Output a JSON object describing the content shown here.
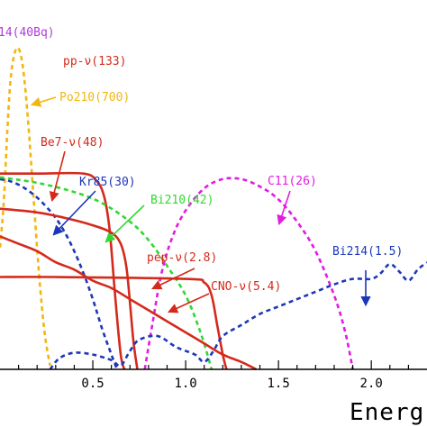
{
  "chart_data": {
    "type": "line",
    "xlabel": "Energ",
    "xlim": [
      0.0,
      2.3
    ],
    "ylim": [
      0,
      1
    ],
    "x_ticks": [
      0.5,
      1.0,
      1.5,
      2.0
    ],
    "x_tick_labels": [
      "0.5",
      "1.0",
      "1.5",
      "2.0"
    ],
    "colors": {
      "neutrino": "#d42a1c",
      "po210": "#f2b70f",
      "kr85": "#1d37b8",
      "bi210": "#31d831",
      "c11": "#e21be2",
      "bi214": "#1d37b8",
      "pb214": "#b03cd8"
    },
    "series": [
      {
        "name": "14(40Bq)",
        "color": "#b03cd8",
        "dash": false,
        "points": []
      },
      {
        "name": "pp-ν(133)",
        "color": "#d42a1c",
        "dash": false,
        "points": []
      },
      {
        "name": "Po210(700)",
        "color": "#f2b70f",
        "dash": true,
        "points": [
          [
            0.0,
            0.33
          ],
          [
            0.02,
            0.45
          ],
          [
            0.04,
            0.65
          ],
          [
            0.06,
            0.8
          ],
          [
            0.09,
            0.87
          ],
          [
            0.12,
            0.83
          ],
          [
            0.15,
            0.68
          ],
          [
            0.18,
            0.47
          ],
          [
            0.21,
            0.26
          ],
          [
            0.24,
            0.1
          ],
          [
            0.27,
            0.01
          ]
        ]
      },
      {
        "name": "Be7-ν(48)",
        "color": "#d42a1c",
        "dash": false,
        "points": [
          [
            0.0,
            0.53
          ],
          [
            0.2,
            0.53
          ],
          [
            0.45,
            0.53
          ],
          [
            0.52,
            0.51
          ],
          [
            0.56,
            0.47
          ],
          [
            0.59,
            0.38
          ],
          [
            0.62,
            0.2
          ],
          [
            0.65,
            0.04
          ],
          [
            0.67,
            0.0
          ]
        ]
      },
      {
        "name": "Kr85(30)",
        "color": "#1d37b8",
        "dash": true,
        "points": [
          [
            0.0,
            0.515
          ],
          [
            0.05,
            0.51
          ],
          [
            0.1,
            0.5
          ],
          [
            0.15,
            0.485
          ],
          [
            0.2,
            0.465
          ],
          [
            0.25,
            0.44
          ],
          [
            0.3,
            0.41
          ],
          [
            0.35,
            0.37
          ],
          [
            0.4,
            0.32
          ],
          [
            0.45,
            0.26
          ],
          [
            0.5,
            0.19
          ],
          [
            0.55,
            0.11
          ],
          [
            0.6,
            0.04
          ],
          [
            0.63,
            0.0
          ]
        ]
      },
      {
        "name": "Bi210(42)",
        "color": "#31d831",
        "dash": true,
        "points": [
          [
            0.0,
            0.52
          ],
          [
            0.2,
            0.505
          ],
          [
            0.4,
            0.48
          ],
          [
            0.55,
            0.45
          ],
          [
            0.7,
            0.4
          ],
          [
            0.8,
            0.35
          ],
          [
            0.9,
            0.28
          ],
          [
            1.0,
            0.2
          ],
          [
            1.08,
            0.1
          ],
          [
            1.14,
            0.0
          ]
        ]
      },
      {
        "name": "C11(26)",
        "color": "#e21be2",
        "dash": true,
        "points": [
          [
            0.78,
            0.0
          ],
          [
            0.82,
            0.12
          ],
          [
            0.87,
            0.26
          ],
          [
            0.93,
            0.36
          ],
          [
            1.0,
            0.43
          ],
          [
            1.1,
            0.49
          ],
          [
            1.2,
            0.515
          ],
          [
            1.3,
            0.515
          ],
          [
            1.4,
            0.495
          ],
          [
            1.5,
            0.46
          ],
          [
            1.6,
            0.4
          ],
          [
            1.7,
            0.32
          ],
          [
            1.8,
            0.2
          ],
          [
            1.86,
            0.1
          ],
          [
            1.9,
            0.0
          ]
        ]
      },
      {
        "name": "pep-ν(2.8)",
        "color": "#d42a1c",
        "dash": false,
        "points": [
          [
            0.0,
            0.25
          ],
          [
            0.3,
            0.25
          ],
          [
            1.0,
            0.245
          ],
          [
            1.1,
            0.235
          ],
          [
            1.14,
            0.2
          ],
          [
            1.17,
            0.12
          ],
          [
            1.2,
            0.04
          ],
          [
            1.22,
            0.0
          ]
        ]
      },
      {
        "name": "CNO-ν(5.4)",
        "color": "#d42a1c",
        "dash": false,
        "points": [
          [
            0.0,
            0.36
          ],
          [
            0.1,
            0.34
          ],
          [
            0.2,
            0.32
          ],
          [
            0.3,
            0.29
          ],
          [
            0.4,
            0.27
          ],
          [
            0.5,
            0.24
          ],
          [
            0.6,
            0.22
          ],
          [
            0.7,
            0.19
          ],
          [
            0.8,
            0.16
          ],
          [
            0.9,
            0.13
          ],
          [
            1.0,
            0.1
          ],
          [
            1.1,
            0.07
          ],
          [
            1.2,
            0.04
          ],
          [
            1.3,
            0.02
          ],
          [
            1.38,
            0.0
          ]
        ]
      },
      {
        "name": "",
        "color": "#d42a1c",
        "dash": false,
        "points": [
          [
            0.0,
            0.435
          ],
          [
            0.2,
            0.425
          ],
          [
            0.35,
            0.41
          ],
          [
            0.5,
            0.39
          ],
          [
            0.6,
            0.37
          ],
          [
            0.65,
            0.34
          ],
          [
            0.68,
            0.28
          ],
          [
            0.7,
            0.18
          ],
          [
            0.72,
            0.07
          ],
          [
            0.74,
            0.0
          ]
        ]
      },
      {
        "name": "Bi214(1.5)",
        "color": "#1d37b8",
        "dash": true,
        "points": [
          [
            0.27,
            0.0
          ],
          [
            0.32,
            0.03
          ],
          [
            0.4,
            0.045
          ],
          [
            0.5,
            0.04
          ],
          [
            0.6,
            0.025
          ],
          [
            0.65,
            0.01
          ],
          [
            0.7,
            0.05
          ],
          [
            0.75,
            0.08
          ],
          [
            0.85,
            0.09
          ],
          [
            0.95,
            0.06
          ],
          [
            1.05,
            0.04
          ],
          [
            1.1,
            0.02
          ],
          [
            1.15,
            0.05
          ],
          [
            1.2,
            0.09
          ],
          [
            1.3,
            0.12
          ],
          [
            1.4,
            0.15
          ],
          [
            1.5,
            0.17
          ],
          [
            1.6,
            0.19
          ],
          [
            1.7,
            0.21
          ],
          [
            1.8,
            0.23
          ],
          [
            1.9,
            0.245
          ],
          [
            2.0,
            0.245
          ],
          [
            2.05,
            0.26
          ],
          [
            2.1,
            0.285
          ],
          [
            2.15,
            0.265
          ],
          [
            2.2,
            0.24
          ],
          [
            2.25,
            0.27
          ],
          [
            2.3,
            0.29
          ]
        ]
      }
    ],
    "annotations": [
      {
        "text": "14(40Bq)",
        "color": "#b03cd8"
      },
      {
        "text": "pp-ν(133)",
        "color": "#d42a1c"
      },
      {
        "text": "Po210(700)",
        "color": "#f2b70f"
      },
      {
        "text": "Be7-ν(48)",
        "color": "#d42a1c"
      },
      {
        "text": "Kr85(30)",
        "color": "#1d37b8"
      },
      {
        "text": "Bi210(42)",
        "color": "#31d831"
      },
      {
        "text": "C11(26)",
        "color": "#e21be2"
      },
      {
        "text": "pep-ν(2.8)",
        "color": "#d42a1c"
      },
      {
        "text": "CNO-ν(5.4)",
        "color": "#d42a1c"
      },
      {
        "text": "Bi214(1.5)",
        "color": "#1d37b8"
      }
    ]
  }
}
